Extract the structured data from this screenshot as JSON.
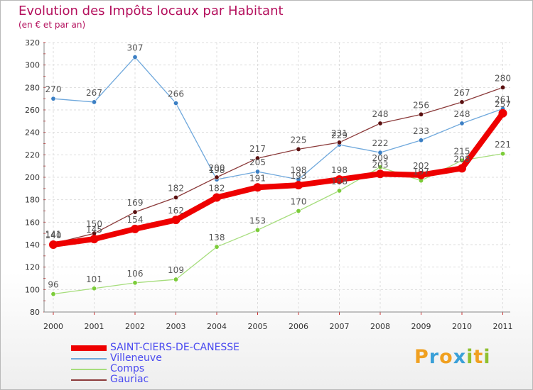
{
  "chart_data": {
    "type": "line",
    "title": "Evolution des Impôts locaux par Habitant",
    "subtitle": "(en € et par an)",
    "xlabel": "",
    "ylabel": "",
    "ylim": [
      80,
      320
    ],
    "yticks": [
      80,
      100,
      120,
      140,
      160,
      180,
      200,
      220,
      240,
      260,
      280,
      300,
      320
    ],
    "grid": true,
    "legend_position": "bottom-left",
    "categories": [
      "2000",
      "2001",
      "2002",
      "2003",
      "2004",
      "2005",
      "2006",
      "2007",
      "2008",
      "2009",
      "2010",
      "2011"
    ],
    "series": [
      {
        "name": "SAINT-CIERS-DE-CANESSE",
        "color": "#ee0000",
        "marker": "#ee0000",
        "values": [
          140,
          145,
          154,
          162,
          182,
          191,
          193,
          198,
          203,
          202,
          208,
          257
        ]
      },
      {
        "name": "Villeneuve",
        "color": "#6fa8dc",
        "marker": "#3b7fc4",
        "values": [
          270,
          267,
          307,
          266,
          198,
          205,
          198,
          229,
          222,
          233,
          248,
          261
        ]
      },
      {
        "name": "Comps",
        "color": "#a6dd7c",
        "marker": "#7ccc3a",
        "values": [
          96,
          101,
          106,
          109,
          138,
          153,
          170,
          188,
          209,
          197,
          215,
          221
        ]
      },
      {
        "name": "Gauriac",
        "color": "#8b3a3a",
        "marker": "#5a1010",
        "values": [
          141,
          150,
          169,
          182,
          200,
          217,
          225,
          231,
          248,
          256,
          267,
          280
        ]
      }
    ]
  },
  "logo": {
    "text": "Proxiti",
    "letters": [
      {
        "ch": "P",
        "color": "#f0a020"
      },
      {
        "ch": "r",
        "color": "#3aa0d8"
      },
      {
        "ch": "o",
        "color": "#f0a020"
      },
      {
        "ch": "x",
        "color": "#3aa0d8"
      },
      {
        "ch": "i",
        "color": "#90c030"
      },
      {
        "ch": "t",
        "color": "#f0a020"
      },
      {
        "ch": "i",
        "color": "#90c030"
      }
    ]
  }
}
